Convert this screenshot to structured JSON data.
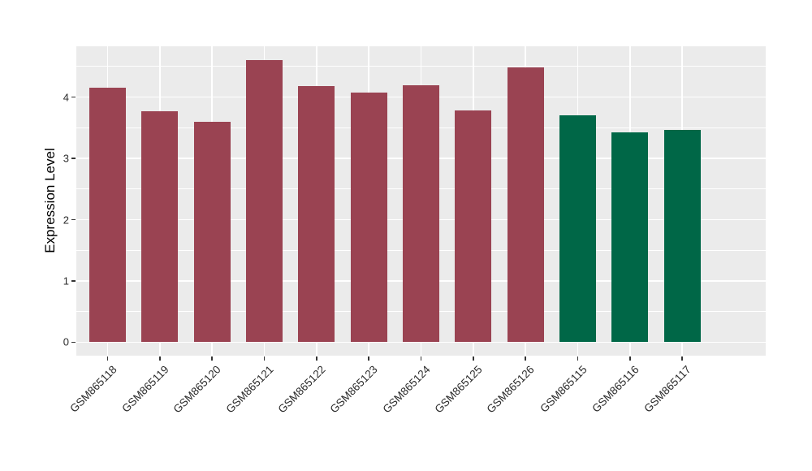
{
  "chart_data": {
    "type": "bar",
    "title": "",
    "xlabel": "",
    "ylabel": "Expression Level",
    "categories": [
      "GSM865118",
      "GSM865119",
      "GSM865120",
      "GSM865121",
      "GSM865122",
      "GSM865123",
      "GSM865124",
      "GSM865125",
      "GSM865126",
      "GSM865115",
      "GSM865116",
      "GSM865117"
    ],
    "values": [
      4.15,
      3.77,
      3.6,
      4.6,
      4.18,
      4.08,
      4.2,
      3.78,
      4.48,
      3.71,
      3.42,
      3.46
    ],
    "bar_colors": [
      "#9A4352",
      "#9A4352",
      "#9A4352",
      "#9A4352",
      "#9A4352",
      "#9A4352",
      "#9A4352",
      "#9A4352",
      "#9A4352",
      "#006747",
      "#006747",
      "#006747"
    ],
    "yticks": [
      0,
      1,
      2,
      3,
      4
    ],
    "ylim": [
      -0.22,
      4.83
    ],
    "bar_rel_width": 0.7,
    "grid": true,
    "legend": false,
    "x_label_rotation_deg": 45,
    "panel_bg": "#EBEBEB",
    "grid_color": "#FFFFFF",
    "tick_mark_color": "#333333",
    "tick_label_color": "#2b2b2b",
    "axis_title_color": "#000000"
  }
}
